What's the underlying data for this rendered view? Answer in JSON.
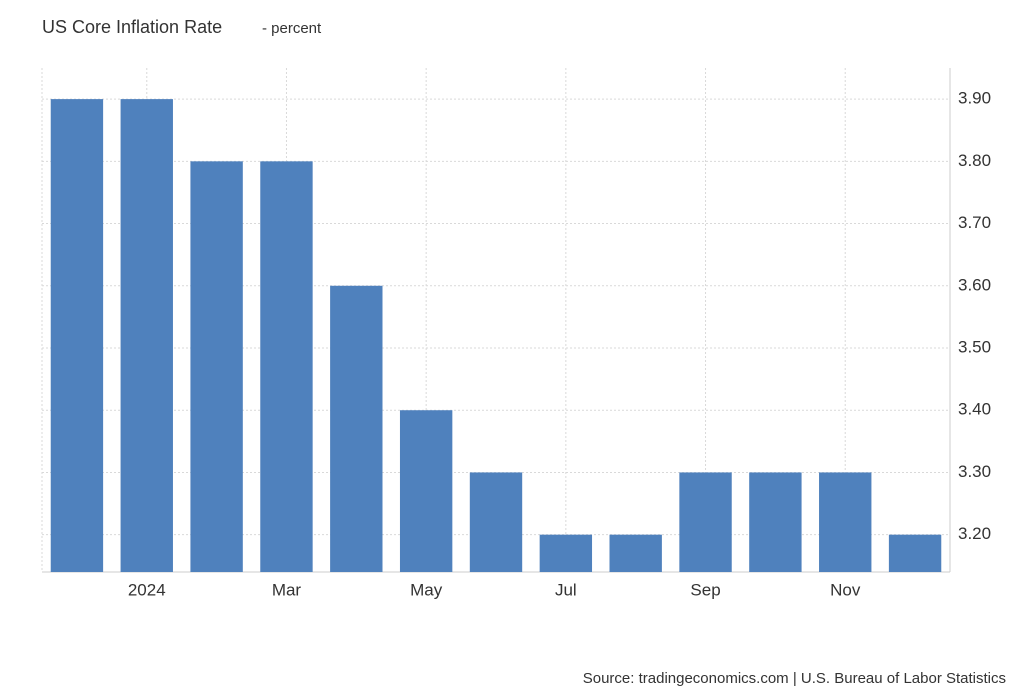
{
  "chart_data": {
    "type": "bar",
    "title": "US Core Inflation Rate",
    "subtitle": "- percent",
    "source": "Source: tradingeconomics.com | U.S. Bureau of Labor Statistics",
    "categories": [
      null,
      "2024",
      null,
      "Mar",
      null,
      "May",
      null,
      "Jul",
      null,
      "Sep",
      null,
      "Nov",
      null
    ],
    "values": [
      3.9,
      3.9,
      3.8,
      3.8,
      3.6,
      3.4,
      3.3,
      3.2,
      3.2,
      3.3,
      3.3,
      3.3,
      3.2
    ],
    "color": "#4f81bd",
    "ylim": [
      3.14,
      3.95
    ],
    "yticks": [
      {
        "value": 3.2,
        "label": "3.20"
      },
      {
        "value": 3.3,
        "label": "3.30"
      },
      {
        "value": 3.4,
        "label": "3.40"
      },
      {
        "value": 3.5,
        "label": "3.50"
      },
      {
        "value": 3.6,
        "label": "3.60"
      },
      {
        "value": 3.7,
        "label": "3.70"
      },
      {
        "value": 3.8,
        "label": "3.80"
      },
      {
        "value": 3.9,
        "label": "3.90"
      }
    ],
    "grid": true
  }
}
